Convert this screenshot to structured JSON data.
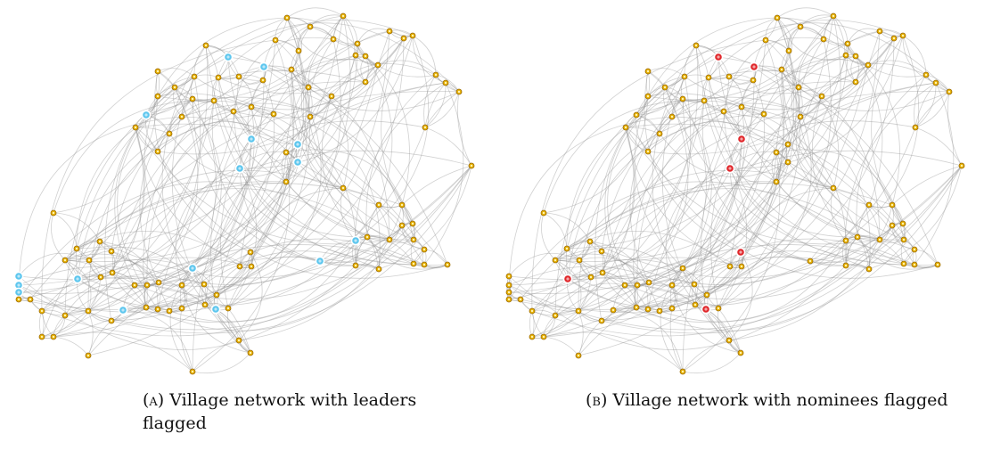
{
  "captions": {
    "a": {
      "tag": "(a)",
      "text": "Village network with leaders flagged"
    },
    "b": {
      "tag": "(b)",
      "text": "Village network with nominees flagged"
    }
  },
  "colors": {
    "node_fill": "#e6b000",
    "node_stroke": "#9c6a00",
    "edge": "#9a9a9a",
    "leader": "#5cc6ee",
    "nominee": "#e0262a"
  },
  "panels": [
    {
      "id": "a",
      "highlight_role": "leaders",
      "highlight_color": "#5cc6ee",
      "highlight_icon": "circle"
    },
    {
      "id": "b",
      "highlight_role": "nominees",
      "highlight_color": "#e0262a",
      "highlight_icon": "circle"
    }
  ]
}
